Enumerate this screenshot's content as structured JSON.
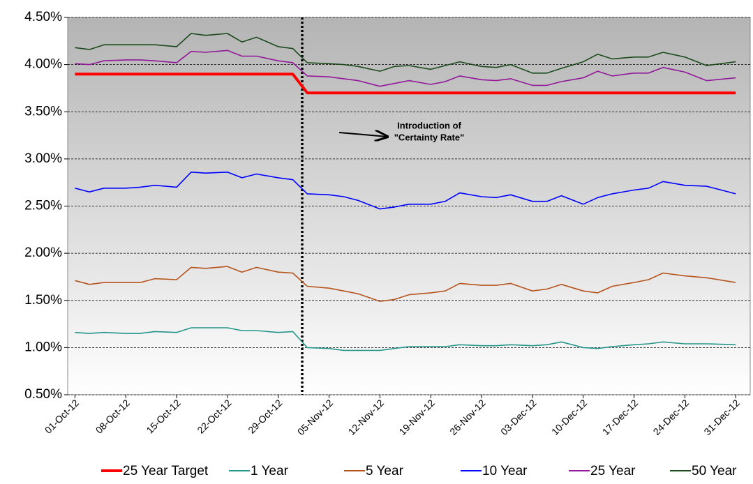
{
  "chart_data": {
    "type": "line",
    "annotation": [
      "Introduction of",
      "\"Certainty Rate\""
    ],
    "x": [
      "2012-10-01",
      "2012-10-03",
      "2012-10-05",
      "2012-10-08",
      "2012-10-10",
      "2012-10-12",
      "2012-10-15",
      "2012-10-17",
      "2012-10-19",
      "2012-10-22",
      "2012-10-24",
      "2012-10-26",
      "2012-10-29",
      "2012-10-31",
      "2012-11-02",
      "2012-11-05",
      "2012-11-07",
      "2012-11-09",
      "2012-11-12",
      "2012-11-14",
      "2012-11-16",
      "2012-11-19",
      "2012-11-21",
      "2012-11-23",
      "2012-11-26",
      "2012-11-28",
      "2012-11-30",
      "2012-12-03",
      "2012-12-05",
      "2012-12-07",
      "2012-12-10",
      "2012-12-12",
      "2012-12-14",
      "2012-12-17",
      "2012-12-19",
      "2012-12-21",
      "2012-12-24",
      "2012-12-27",
      "2012-12-31"
    ],
    "series": [
      {
        "name": "25 Year Target",
        "color": "#ff0000",
        "width": 4,
        "values": [
          3.9,
          3.9,
          3.9,
          3.9,
          3.9,
          3.9,
          3.9,
          3.9,
          3.9,
          3.9,
          3.9,
          3.9,
          3.9,
          3.9,
          3.7,
          3.7,
          3.7,
          3.7,
          3.7,
          3.7,
          3.7,
          3.7,
          3.7,
          3.7,
          3.7,
          3.7,
          3.7,
          3.7,
          3.7,
          3.7,
          3.7,
          3.7,
          3.7,
          3.7,
          3.7,
          3.7,
          3.7,
          3.7,
          3.7
        ]
      },
      {
        "name": "1 Year",
        "color": "#24968a",
        "width": 1.6,
        "values": [
          1.16,
          1.15,
          1.16,
          1.15,
          1.15,
          1.17,
          1.16,
          1.21,
          1.21,
          1.21,
          1.18,
          1.18,
          1.16,
          1.17,
          1.0,
          0.99,
          0.97,
          0.97,
          0.97,
          0.99,
          1.01,
          1.01,
          1.01,
          1.03,
          1.02,
          1.02,
          1.03,
          1.02,
          1.03,
          1.06,
          1.0,
          0.99,
          1.01,
          1.03,
          1.04,
          1.06,
          1.04,
          1.04,
          1.03
        ]
      },
      {
        "name": "5 Year",
        "color": "#b5541c",
        "width": 1.6,
        "values": [
          1.71,
          1.67,
          1.69,
          1.69,
          1.69,
          1.73,
          1.72,
          1.85,
          1.84,
          1.86,
          1.8,
          1.85,
          1.8,
          1.79,
          1.65,
          1.63,
          1.6,
          1.57,
          1.49,
          1.51,
          1.56,
          1.58,
          1.6,
          1.68,
          1.66,
          1.66,
          1.68,
          1.6,
          1.62,
          1.67,
          1.6,
          1.58,
          1.65,
          1.69,
          1.72,
          1.79,
          1.76,
          1.74,
          1.69
        ]
      },
      {
        "name": "10 Year",
        "color": "#0000ff",
        "width": 1.6,
        "values": [
          2.69,
          2.65,
          2.69,
          2.69,
          2.7,
          2.72,
          2.7,
          2.86,
          2.85,
          2.86,
          2.8,
          2.84,
          2.8,
          2.78,
          2.63,
          2.62,
          2.6,
          2.56,
          2.47,
          2.49,
          2.52,
          2.52,
          2.55,
          2.64,
          2.6,
          2.59,
          2.62,
          2.55,
          2.55,
          2.61,
          2.52,
          2.59,
          2.63,
          2.67,
          2.69,
          2.76,
          2.72,
          2.71,
          2.63
        ]
      },
      {
        "name": "25 Year",
        "color": "#92179a",
        "width": 1.6,
        "values": [
          4.01,
          4.0,
          4.04,
          4.05,
          4.05,
          4.04,
          4.02,
          4.14,
          4.13,
          4.15,
          4.09,
          4.09,
          4.04,
          4.02,
          3.88,
          3.87,
          3.85,
          3.83,
          3.77,
          3.8,
          3.83,
          3.79,
          3.82,
          3.88,
          3.84,
          3.83,
          3.85,
          3.78,
          3.78,
          3.82,
          3.86,
          3.93,
          3.88,
          3.91,
          3.91,
          3.97,
          3.92,
          3.83,
          3.86
        ]
      },
      {
        "name": "50 Year",
        "color": "#1b4a1b",
        "width": 1.6,
        "values": [
          4.18,
          4.16,
          4.21,
          4.21,
          4.21,
          4.21,
          4.19,
          4.33,
          4.31,
          4.33,
          4.24,
          4.29,
          4.19,
          4.17,
          4.02,
          4.01,
          4.0,
          3.98,
          3.93,
          3.98,
          3.99,
          3.95,
          3.99,
          4.03,
          3.98,
          3.97,
          4.0,
          3.91,
          3.91,
          3.96,
          4.03,
          4.11,
          4.06,
          4.08,
          4.08,
          4.13,
          4.08,
          3.99,
          4.03
        ]
      }
    ],
    "xlim": [
      "2012-09-30",
      "2013-01-02"
    ],
    "xticks": [
      {
        "value": "2012-10-01",
        "label": "01-Oct-12"
      },
      {
        "value": "2012-10-08",
        "label": "08-Oct-12"
      },
      {
        "value": "2012-10-15",
        "label": "15-Oct-12"
      },
      {
        "value": "2012-10-22",
        "label": "22-Oct-12"
      },
      {
        "value": "2012-10-29",
        "label": "29-Oct-12"
      },
      {
        "value": "2012-11-05",
        "label": "05-Nov-12"
      },
      {
        "value": "2012-11-12",
        "label": "12-Nov-12"
      },
      {
        "value": "2012-11-19",
        "label": "19-Nov-12"
      },
      {
        "value": "2012-11-26",
        "label": "26-Nov-12"
      },
      {
        "value": "2012-12-03",
        "label": "03-Dec-12"
      },
      {
        "value": "2012-12-10",
        "label": "10-Dec-12"
      },
      {
        "value": "2012-12-17",
        "label": "17-Dec-12"
      },
      {
        "value": "2012-12-24",
        "label": "24-Dec-12"
      },
      {
        "value": "2012-12-31",
        "label": "31-Dec-12"
      }
    ],
    "ylim": [
      0.5,
      4.5
    ],
    "yticks": [
      {
        "value": 0.5,
        "label": "0.50%"
      },
      {
        "value": 1.0,
        "label": "1.00%"
      },
      {
        "value": 1.5,
        "label": "1.50%"
      },
      {
        "value": 2.0,
        "label": "2.00%"
      },
      {
        "value": 2.5,
        "label": "2.50%"
      },
      {
        "value": 3.0,
        "label": "3.00%"
      },
      {
        "value": 3.5,
        "label": "3.50%"
      },
      {
        "value": 4.0,
        "label": "4.00%"
      },
      {
        "value": 4.5,
        "label": "4.50%"
      }
    ],
    "grid": true,
    "legend": "bottom"
  }
}
